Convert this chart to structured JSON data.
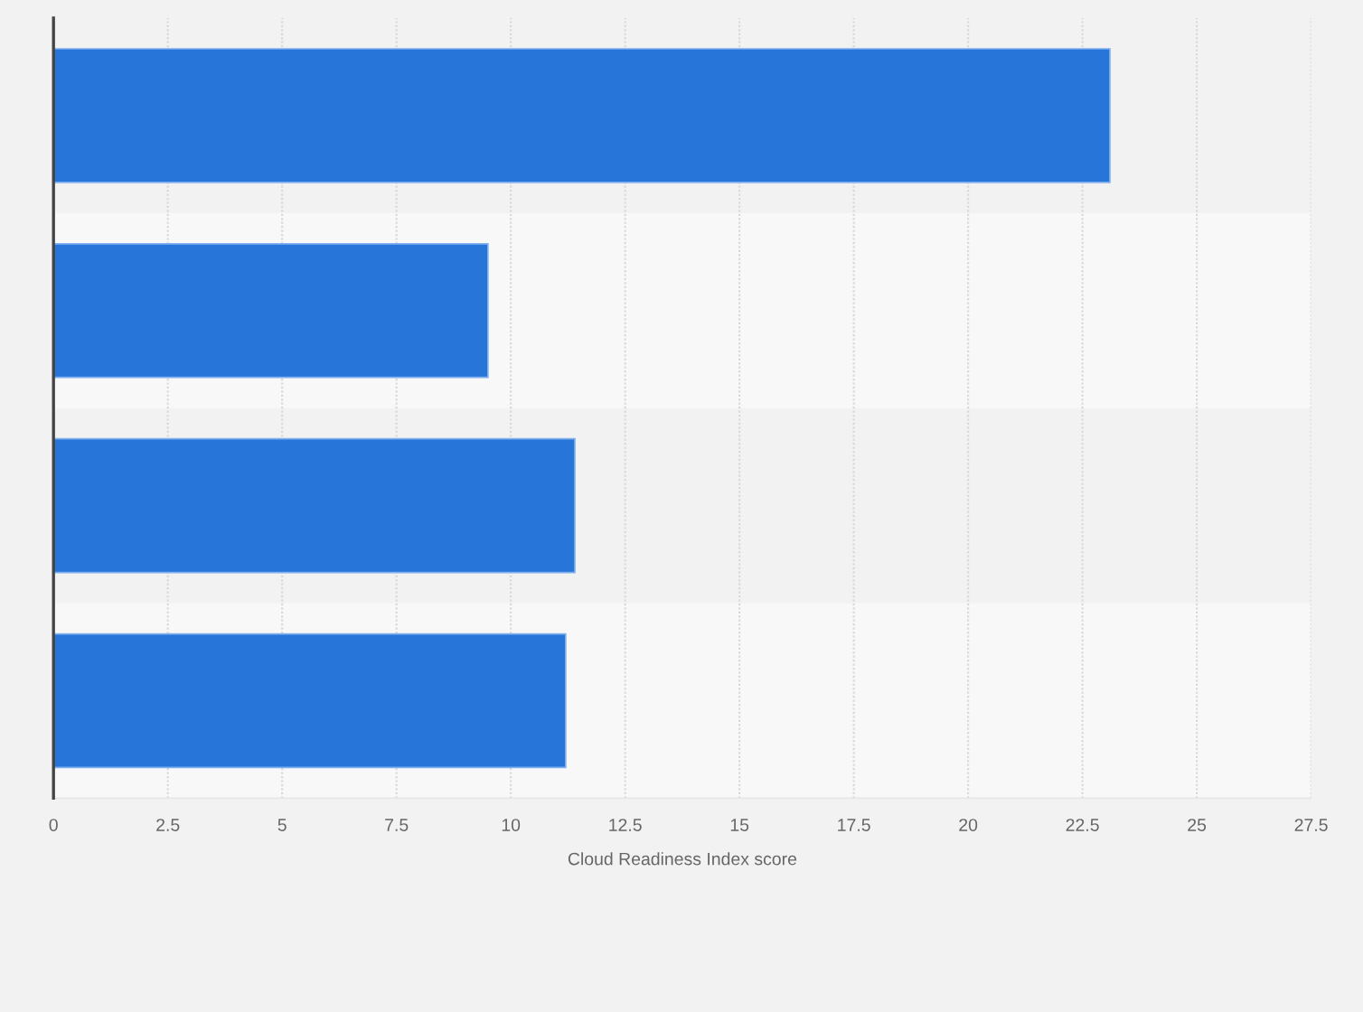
{
  "chart_data": {
    "type": "bar",
    "orientation": "horizontal",
    "categories": [
      null,
      null,
      null,
      null
    ],
    "values": [
      23.1,
      9.5,
      11.4,
      11.2
    ],
    "color": "#2775d9",
    "xlabel": "Cloud Readiness Index score",
    "xlim": [
      0,
      27.5
    ],
    "xticks": [
      0,
      2.5,
      5,
      7.5,
      10,
      12.5,
      15,
      17.5,
      20,
      22.5,
      25,
      27.5
    ],
    "grid": "x",
    "tick_labels": "x"
  }
}
